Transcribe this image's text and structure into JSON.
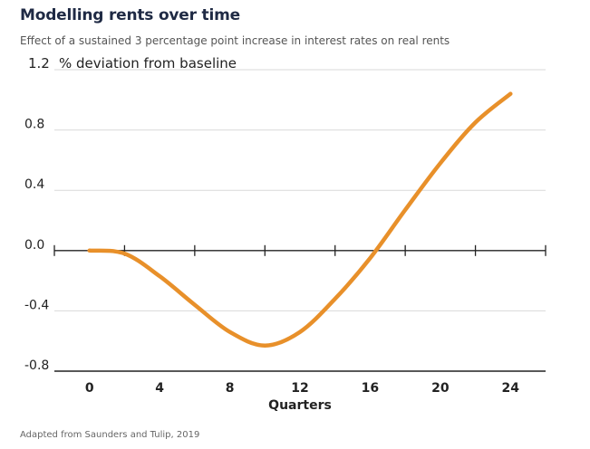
{
  "title": "Modelling rents over time",
  "subtitle": "Effect of a sustained 3 percentage point increase in interest rates on real rents",
  "source": "Adapted from Saunders and Tulip, 2019",
  "colors": {
    "line": "#e8902a",
    "grid": "#d9d9d9",
    "axis": "#222222",
    "text": "#222222"
  },
  "chart_data": {
    "type": "line",
    "ylabel": "% deviation from baseline",
    "xlabel": "Quarters",
    "ylim": [
      -0.8,
      1.2
    ],
    "xlim": [
      -2,
      26
    ],
    "y_ticks": [
      {
        "value": 1.2,
        "label": "1.2"
      },
      {
        "value": 0.8,
        "label": "0.8"
      },
      {
        "value": 0.4,
        "label": "0.4"
      },
      {
        "value": 0.0,
        "label": "0.0"
      },
      {
        "value": -0.4,
        "label": "-0.4"
      },
      {
        "value": -0.8,
        "label": "-0.8"
      }
    ],
    "x_ticks": [
      {
        "value": 0,
        "label": "0"
      },
      {
        "value": 4,
        "label": "4"
      },
      {
        "value": 8,
        "label": "8"
      },
      {
        "value": 12,
        "label": "12"
      },
      {
        "value": 16,
        "label": "16"
      },
      {
        "value": 20,
        "label": "20"
      },
      {
        "value": 24,
        "label": "24"
      }
    ],
    "x_minor_ticks": [
      2,
      6,
      10,
      14,
      18,
      22,
      26
    ],
    "grid": true,
    "series": [
      {
        "x": [
          0,
          2,
          4,
          6,
          8,
          10,
          12,
          14,
          16,
          18,
          20,
          22,
          24
        ],
        "y": [
          0.0,
          -0.02,
          -0.17,
          -0.36,
          -0.54,
          -0.63,
          -0.54,
          -0.32,
          -0.05,
          0.27,
          0.58,
          0.85,
          1.04
        ]
      }
    ]
  }
}
